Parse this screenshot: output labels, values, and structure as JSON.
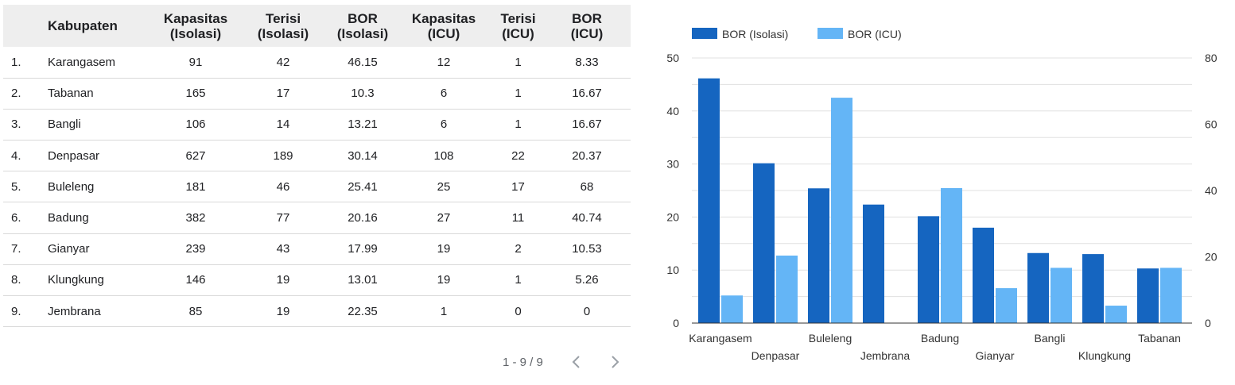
{
  "table": {
    "headers": [
      {
        "key": "idx",
        "lines": [
          "",
          ""
        ]
      },
      {
        "key": "kabupaten",
        "lines": [
          "Kabupaten",
          ""
        ]
      },
      {
        "key": "kap_iso",
        "lines": [
          "Kapasitas",
          "(Isolasi)"
        ]
      },
      {
        "key": "ter_iso",
        "lines": [
          "Terisi",
          "(Isolasi)"
        ]
      },
      {
        "key": "bor_iso",
        "lines": [
          "BOR",
          "(Isolasi)"
        ]
      },
      {
        "key": "kap_icu",
        "lines": [
          "Kapasitas",
          "(ICU)"
        ]
      },
      {
        "key": "ter_icu",
        "lines": [
          "Terisi",
          "(ICU)"
        ]
      },
      {
        "key": "bor_icu",
        "lines": [
          "BOR",
          "(ICU)"
        ]
      }
    ],
    "rows": [
      [
        "1.",
        "Karangasem",
        "91",
        "42",
        "46.15",
        "12",
        "1",
        "8.33"
      ],
      [
        "2.",
        "Tabanan",
        "165",
        "17",
        "10.3",
        "6",
        "1",
        "16.67"
      ],
      [
        "3.",
        "Bangli",
        "106",
        "14",
        "13.21",
        "6",
        "1",
        "16.67"
      ],
      [
        "4.",
        "Denpasar",
        "627",
        "189",
        "30.14",
        "108",
        "22",
        "20.37"
      ],
      [
        "5.",
        "Buleleng",
        "181",
        "46",
        "25.41",
        "25",
        "17",
        "68"
      ],
      [
        "6.",
        "Badung",
        "382",
        "77",
        "20.16",
        "27",
        "11",
        "40.74"
      ],
      [
        "7.",
        "Gianyar",
        "239",
        "43",
        "17.99",
        "19",
        "2",
        "10.53"
      ],
      [
        "8.",
        "Klungkung",
        "146",
        "19",
        "13.01",
        "19",
        "1",
        "5.26"
      ],
      [
        "9.",
        "Jembrana",
        "85",
        "19",
        "22.35",
        "1",
        "0",
        "0"
      ]
    ]
  },
  "pagination": {
    "label": "1 - 9 / 9",
    "prev_icon": "chevron-left-icon",
    "next_icon": "chevron-right-icon"
  },
  "chart_data": {
    "type": "bar",
    "categories": [
      "Karangasem",
      "Denpasar",
      "Buleleng",
      "Jembrana",
      "Badung",
      "Gianyar",
      "Bangli",
      "Klungkung",
      "Tabanan"
    ],
    "series": [
      {
        "name": "BOR (Isolasi)",
        "axis": "left",
        "color": "#1565c0",
        "values": [
          46.15,
          30.14,
          25.41,
          22.35,
          20.16,
          17.99,
          13.21,
          13.01,
          10.3
        ]
      },
      {
        "name": "BOR (ICU)",
        "axis": "right",
        "color": "#64b5f6",
        "values": [
          8.33,
          20.37,
          68,
          0,
          40.74,
          10.53,
          16.67,
          5.26,
          16.67
        ]
      }
    ],
    "y_left": {
      "range": [
        0,
        50
      ],
      "ticks": [
        "0",
        "10",
        "20",
        "30",
        "40",
        "50"
      ]
    },
    "y_right": {
      "range": [
        0,
        80
      ],
      "ticks": [
        "0",
        "20",
        "40",
        "60",
        "80"
      ]
    },
    "legend_position": "top-left",
    "grid": true
  }
}
